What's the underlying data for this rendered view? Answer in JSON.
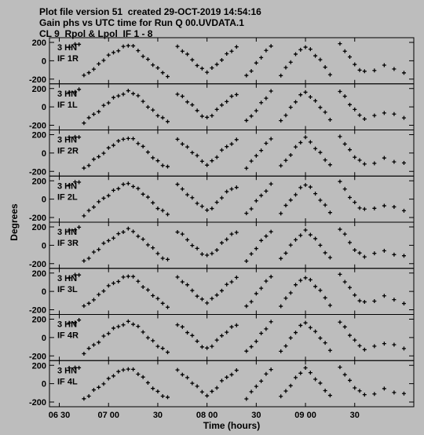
{
  "header": {
    "line1": "Plot file version 51  created 29-OCT-2019 14:54:16",
    "line2": "Gain phs vs UTC time for Run Q 00.UVDATA.1",
    "line3": "CL 9  Rpol & Lpol  IF 1 - 8"
  },
  "chart_data": {
    "type": "scatter",
    "marker": "plus",
    "xlabel": "Time (hours)",
    "ylabel": "Degrees",
    "x_unit": "hours",
    "xlim": [
      6.4,
      10.1
    ],
    "x_ticks": [
      {
        "value": 6.5,
        "label": "06 30"
      },
      {
        "value": 7.0,
        "label": "07 00"
      },
      {
        "value": 7.5,
        "label": "30"
      },
      {
        "value": 8.0,
        "label": "08 00"
      },
      {
        "value": 8.5,
        "label": "30"
      },
      {
        "value": 9.0,
        "label": "09 00"
      },
      {
        "value": 9.5,
        "label": "30"
      }
    ],
    "ylim": [
      -200,
      200
    ],
    "y_ticks": [
      200,
      0,
      -200
    ],
    "panels": [
      {
        "antenna": "3 HN",
        "if": "IF 1R"
      },
      {
        "antenna": "3 HN",
        "if": "IF 1L"
      },
      {
        "antenna": "3 HN",
        "if": "IF 2R"
      },
      {
        "antenna": "3 HN",
        "if": "IF 2L"
      },
      {
        "antenna": "3 HN",
        "if": "IF 3R"
      },
      {
        "antenna": "3 HN",
        "if": "IF 3L"
      },
      {
        "antenna": "3 HN",
        "if": "IF 4R"
      },
      {
        "antenna": "3 HN",
        "if": "IF 4L"
      }
    ],
    "series_template": {
      "description_points": [
        [
          6.6,
          160
        ],
        [
          6.66,
          175
        ],
        [
          6.7,
          185
        ],
        [
          6.75,
          -170
        ],
        [
          6.8,
          -130
        ],
        [
          6.85,
          -80
        ],
        [
          6.9,
          -40
        ],
        [
          6.95,
          10
        ],
        [
          7.0,
          50
        ],
        [
          7.05,
          90
        ],
        [
          7.1,
          120
        ],
        [
          7.15,
          150
        ],
        [
          7.2,
          170
        ],
        [
          7.25,
          150
        ],
        [
          7.3,
          110
        ],
        [
          7.35,
          60
        ],
        [
          7.4,
          10
        ],
        [
          7.45,
          -40
        ],
        [
          7.5,
          -90
        ],
        [
          7.55,
          -130
        ],
        [
          7.6,
          -160
        ],
        [
          7.7,
          150
        ],
        [
          7.75,
          110
        ],
        [
          7.8,
          60
        ],
        [
          7.85,
          10
        ],
        [
          7.9,
          -40
        ],
        [
          7.95,
          -90
        ],
        [
          8.0,
          -120
        ],
        [
          8.05,
          -90
        ],
        [
          8.1,
          -40
        ],
        [
          8.15,
          20
        ],
        [
          8.2,
          70
        ],
        [
          8.25,
          110
        ],
        [
          8.3,
          140
        ],
        [
          8.4,
          -160
        ],
        [
          8.45,
          -100
        ],
        [
          8.5,
          -30
        ],
        [
          8.55,
          40
        ],
        [
          8.6,
          100
        ],
        [
          8.65,
          160
        ],
        [
          8.75,
          -150
        ],
        [
          8.8,
          -80
        ],
        [
          8.85,
          -10
        ],
        [
          8.9,
          60
        ],
        [
          8.95,
          120
        ],
        [
          9.0,
          160
        ],
        [
          9.05,
          120
        ],
        [
          9.1,
          60
        ],
        [
          9.15,
          0
        ],
        [
          9.2,
          -70
        ],
        [
          9.25,
          -140
        ],
        [
          9.35,
          180
        ],
        [
          9.4,
          110
        ],
        [
          9.45,
          30
        ],
        [
          9.5,
          -40
        ],
        [
          9.55,
          -90
        ],
        [
          9.6,
          -120
        ],
        [
          9.7,
          -100
        ],
        [
          9.8,
          -60
        ],
        [
          9.9,
          -90
        ],
        [
          10.0,
          -120
        ]
      ]
    }
  }
}
